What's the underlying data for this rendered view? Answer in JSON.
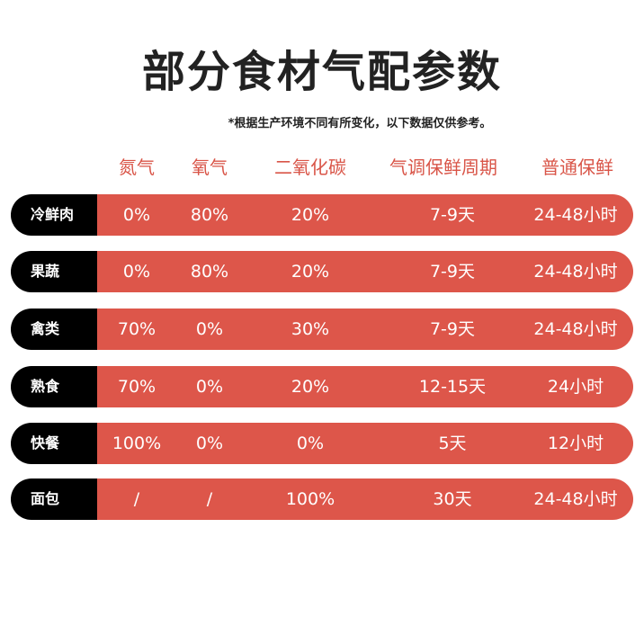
{
  "title": "部分食材气配参数",
  "note": "*根据生产环境不同有所变化，以下数据仅供参考。",
  "colors": {
    "accent": "#dd564a",
    "header_text": "#d95548",
    "label_bg": "#000000",
    "title_text": "#222222"
  },
  "columns": [
    "氮气",
    "氧气",
    "二氧化碳",
    "气调保鲜周期",
    "普通保鲜"
  ],
  "rows": [
    {
      "label": "冷鲜肉",
      "values": [
        "0%",
        "80%",
        "20%",
        "7-9天",
        "24-48小时"
      ]
    },
    {
      "label": "果蔬",
      "values": [
        "0%",
        "80%",
        "20%",
        "7-9天",
        "24-48小时"
      ]
    },
    {
      "label": "禽类",
      "values": [
        "70%",
        "0%",
        "30%",
        "7-9天",
        "24-48小时"
      ]
    },
    {
      "label": "熟食",
      "values": [
        "70%",
        "0%",
        "20%",
        "12-15天",
        "24小时"
      ]
    },
    {
      "label": "快餐",
      "values": [
        "100%",
        "0%",
        "0%",
        "5天",
        "12小时"
      ]
    },
    {
      "label": "面包",
      "values": [
        "/",
        "/",
        "100%",
        "30天",
        "24-48小时"
      ]
    }
  ]
}
